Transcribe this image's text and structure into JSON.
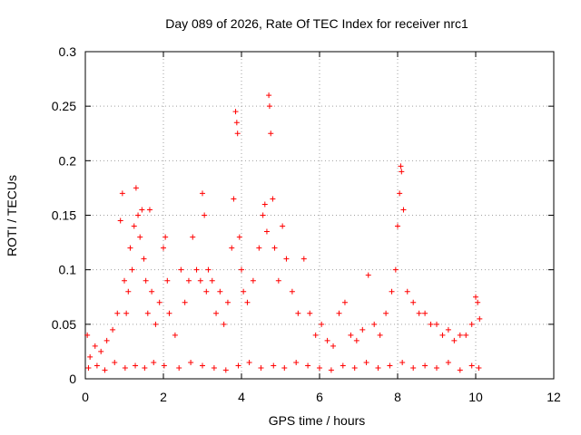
{
  "chart_data": {
    "type": "scatter",
    "title": "Day 089 of 2026, Rate Of TEC Index for receiver nrc1",
    "xlabel": "GPS time / hours",
    "ylabel": "ROTI / TECUs",
    "xlim": [
      0,
      12
    ],
    "ylim": [
      0,
      0.3
    ],
    "x_ticks": [
      "0",
      "2",
      "4",
      "6",
      "8",
      "10",
      "12"
    ],
    "y_ticks": [
      "0",
      "0.05",
      "0.1",
      "0.15",
      "0.2",
      "0.25",
      "0.3"
    ],
    "grid": true,
    "marker": "+",
    "color": "#ff0000",
    "series": [
      {
        "name": "nrc1 ROTI",
        "x": [
          0.05,
          0.12,
          0.25,
          0.4,
          0.55,
          0.7,
          0.82,
          0.9,
          0.95,
          1.0,
          1.05,
          1.1,
          1.15,
          1.2,
          1.25,
          1.3,
          1.35,
          1.4,
          1.45,
          1.5,
          1.55,
          1.6,
          1.65,
          1.7,
          1.8,
          1.9,
          2.0,
          2.05,
          2.1,
          2.15,
          2.3,
          2.45,
          2.55,
          2.65,
          2.75,
          2.85,
          2.95,
          3.0,
          3.05,
          3.1,
          3.15,
          3.25,
          3.35,
          3.45,
          3.55,
          3.65,
          3.75,
          3.8,
          3.85,
          3.88,
          3.9,
          3.95,
          4.0,
          4.05,
          4.15,
          4.3,
          4.45,
          4.55,
          4.6,
          4.65,
          4.7,
          4.72,
          4.75,
          4.8,
          4.85,
          4.95,
          5.05,
          5.15,
          5.3,
          5.45,
          5.6,
          5.75,
          5.9,
          6.05,
          6.2,
          6.35,
          6.5,
          6.65,
          6.8,
          6.95,
          7.1,
          7.25,
          7.4,
          7.55,
          7.7,
          7.85,
          7.95,
          8.0,
          8.05,
          8.08,
          8.1,
          8.15,
          8.25,
          8.4,
          8.55,
          8.7,
          8.85,
          9.0,
          9.15,
          9.3,
          9.45,
          9.6,
          9.75,
          9.9,
          10.0,
          10.05,
          10.1,
          0.08,
          0.3,
          0.5,
          0.75,
          1.02,
          1.28,
          1.52,
          1.75,
          2.02,
          2.4,
          2.7,
          3.0,
          3.3,
          3.6,
          3.92,
          4.2,
          4.5,
          4.82,
          5.1,
          5.4,
          5.7,
          6.0,
          6.3,
          6.6,
          6.9,
          7.2,
          7.5,
          7.8,
          8.12,
          8.4,
          8.7,
          9.0,
          9.3,
          9.6,
          9.9,
          10.08
        ],
        "y": [
          0.04,
          0.02,
          0.03,
          0.025,
          0.035,
          0.045,
          0.06,
          0.145,
          0.17,
          0.09,
          0.06,
          0.08,
          0.12,
          0.1,
          0.14,
          0.175,
          0.15,
          0.13,
          0.155,
          0.11,
          0.09,
          0.06,
          0.155,
          0.08,
          0.05,
          0.07,
          0.12,
          0.13,
          0.09,
          0.06,
          0.04,
          0.1,
          0.07,
          0.09,
          0.13,
          0.1,
          0.09,
          0.17,
          0.15,
          0.08,
          0.1,
          0.09,
          0.06,
          0.08,
          0.05,
          0.07,
          0.12,
          0.165,
          0.245,
          0.235,
          0.225,
          0.13,
          0.1,
          0.08,
          0.07,
          0.09,
          0.12,
          0.15,
          0.16,
          0.135,
          0.26,
          0.25,
          0.225,
          0.165,
          0.12,
          0.09,
          0.14,
          0.11,
          0.08,
          0.06,
          0.11,
          0.06,
          0.04,
          0.05,
          0.035,
          0.03,
          0.06,
          0.07,
          0.04,
          0.035,
          0.045,
          0.095,
          0.05,
          0.04,
          0.06,
          0.08,
          0.1,
          0.14,
          0.17,
          0.195,
          0.19,
          0.155,
          0.08,
          0.07,
          0.06,
          0.06,
          0.05,
          0.05,
          0.04,
          0.045,
          0.035,
          0.04,
          0.04,
          0.05,
          0.075,
          0.07,
          0.055,
          0.01,
          0.012,
          0.008,
          0.015,
          0.01,
          0.012,
          0.01,
          0.015,
          0.012,
          0.01,
          0.015,
          0.012,
          0.01,
          0.008,
          0.012,
          0.015,
          0.01,
          0.012,
          0.01,
          0.015,
          0.012,
          0.01,
          0.008,
          0.012,
          0.01,
          0.015,
          0.01,
          0.012,
          0.015,
          0.01,
          0.012,
          0.01,
          0.015,
          0.008,
          0.012,
          0.01
        ]
      }
    ]
  }
}
